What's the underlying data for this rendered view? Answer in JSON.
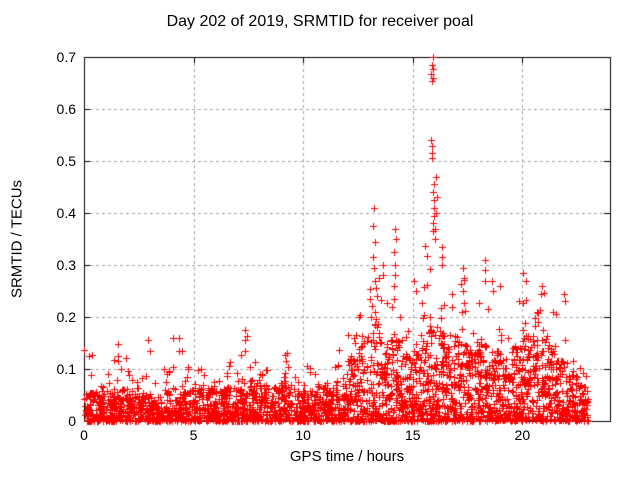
{
  "chart_data": {
    "type": "scatter",
    "title": "Day 202 of 2019, SRMTID for receiver poal",
    "xlabel": "GPS time / hours",
    "ylabel": "SRMTID / TECUs",
    "xlim": [
      0,
      24
    ],
    "ylim": [
      0,
      0.7
    ],
    "xticks": [
      0,
      5,
      10,
      15,
      20
    ],
    "yticks": [
      0,
      0.1,
      0.2,
      0.3,
      0.4,
      0.5,
      0.6,
      0.7
    ],
    "xtick_labels": [
      "0",
      "5",
      "10",
      "15",
      "20"
    ],
    "ytick_labels": [
      "0",
      "0.1",
      "0.2",
      "0.3",
      "0.4",
      "0.5",
      "0.6",
      "0.7"
    ],
    "legend": "none",
    "grid": {
      "on": true,
      "color": "#a6a6a6",
      "dash": [
        3,
        3
      ]
    },
    "marker": {
      "glyph": "plus",
      "color": "#ff0000",
      "size": 7
    },
    "background": "#ffffff",
    "data_time_range": [
      0,
      23.0
    ],
    "seed": 7,
    "tail_fraction": 0.08,
    "envelope_bins_format": [
      "t_start",
      "t_end",
      "n_points",
      "dense_band_max",
      "outlier_max",
      "n_zero_points"
    ],
    "envelope_bins": [
      [
        0.0,
        0.5,
        60,
        0.055,
        0.14,
        1
      ],
      [
        0.5,
        1.0,
        60,
        0.06,
        0.1,
        1
      ],
      [
        1.0,
        1.5,
        60,
        0.065,
        0.12,
        1
      ],
      [
        1.5,
        2.0,
        60,
        0.06,
        0.15,
        2
      ],
      [
        2.0,
        2.5,
        60,
        0.065,
        0.11,
        1
      ],
      [
        2.5,
        3.0,
        55,
        0.055,
        0.09,
        2
      ],
      [
        3.0,
        3.5,
        55,
        0.05,
        0.09,
        1
      ],
      [
        3.5,
        4.0,
        55,
        0.06,
        0.1,
        1
      ],
      [
        4.0,
        4.5,
        55,
        0.065,
        0.16,
        1
      ],
      [
        4.5,
        5.0,
        55,
        0.06,
        0.12,
        2
      ],
      [
        5.0,
        5.5,
        55,
        0.06,
        0.1,
        1
      ],
      [
        5.5,
        6.0,
        55,
        0.065,
        0.11,
        1
      ],
      [
        6.0,
        6.5,
        55,
        0.06,
        0.1,
        2
      ],
      [
        6.5,
        7.0,
        55,
        0.065,
        0.12,
        1
      ],
      [
        7.0,
        7.5,
        60,
        0.075,
        0.175,
        1
      ],
      [
        7.5,
        8.0,
        65,
        0.08,
        0.13,
        5
      ],
      [
        8.0,
        8.5,
        60,
        0.07,
        0.12,
        2
      ],
      [
        8.5,
        9.0,
        55,
        0.065,
        0.11,
        1
      ],
      [
        9.0,
        9.5,
        60,
        0.07,
        0.13,
        1
      ],
      [
        9.5,
        10.0,
        55,
        0.065,
        0.11,
        2
      ],
      [
        10.0,
        10.5,
        55,
        0.06,
        0.11,
        1
      ],
      [
        10.5,
        11.0,
        55,
        0.065,
        0.1,
        2
      ],
      [
        11.0,
        11.5,
        60,
        0.07,
        0.12,
        1
      ],
      [
        11.5,
        12.0,
        60,
        0.085,
        0.14,
        2
      ],
      [
        12.0,
        12.5,
        65,
        0.12,
        0.18,
        2
      ],
      [
        12.5,
        13.0,
        65,
        0.17,
        0.24,
        3
      ],
      [
        13.0,
        13.5,
        70,
        0.2,
        0.28,
        3
      ],
      [
        13.5,
        14.0,
        70,
        0.16,
        0.26,
        5
      ],
      [
        14.0,
        14.5,
        70,
        0.16,
        0.25,
        6
      ],
      [
        14.5,
        15.0,
        65,
        0.13,
        0.22,
        6
      ],
      [
        15.0,
        15.5,
        65,
        0.14,
        0.25,
        5
      ],
      [
        15.5,
        16.0,
        75,
        0.18,
        0.34,
        4
      ],
      [
        16.0,
        16.5,
        75,
        0.18,
        0.33,
        4
      ],
      [
        16.5,
        17.0,
        70,
        0.15,
        0.27,
        4
      ],
      [
        17.0,
        17.5,
        70,
        0.16,
        0.28,
        3
      ],
      [
        17.5,
        18.0,
        70,
        0.14,
        0.24,
        3
      ],
      [
        18.0,
        18.5,
        70,
        0.15,
        0.28,
        2
      ],
      [
        18.5,
        19.0,
        70,
        0.14,
        0.26,
        2
      ],
      [
        19.0,
        19.5,
        65,
        0.12,
        0.21,
        2
      ],
      [
        19.5,
        20.0,
        70,
        0.15,
        0.24,
        3
      ],
      [
        20.0,
        20.5,
        70,
        0.17,
        0.26,
        2
      ],
      [
        20.5,
        21.0,
        70,
        0.16,
        0.25,
        2
      ],
      [
        21.0,
        21.5,
        65,
        0.15,
        0.23,
        3
      ],
      [
        21.5,
        22.0,
        60,
        0.12,
        0.24,
        3
      ],
      [
        22.0,
        22.5,
        55,
        0.09,
        0.15,
        2
      ],
      [
        22.5,
        23.0,
        50,
        0.07,
        0.12,
        2
      ]
    ],
    "spike_clusters_format": [
      "t_hours",
      "values"
    ],
    "spike_clusters": [
      [
        15.9,
        [
          0.7,
          0.685,
          0.676,
          0.668,
          0.66,
          0.653,
          0.54,
          0.528,
          0.515,
          0.505
        ]
      ],
      [
        15.95,
        [
          0.455,
          0.44,
          0.425,
          0.41,
          0.395,
          0.38,
          0.365
        ]
      ],
      [
        16.05,
        [
          0.47,
          0.43,
          0.4,
          0.37,
          0.35
        ]
      ],
      [
        16.3,
        [
          0.335,
          0.315,
          0.3
        ]
      ],
      [
        13.25,
        [
          0.41,
          0.375,
          0.345,
          0.315,
          0.295
        ]
      ],
      [
        13.3,
        [
          0.27,
          0.255,
          0.24
        ]
      ],
      [
        14.2,
        [
          0.37,
          0.35,
          0.325,
          0.3,
          0.28,
          0.26
        ]
      ],
      [
        13.6,
        [
          0.3,
          0.28
        ]
      ],
      [
        15.1,
        [
          0.27,
          0.25
        ]
      ],
      [
        17.3,
        [
          0.295,
          0.275
        ]
      ],
      [
        18.35,
        [
          0.31,
          0.29,
          0.27
        ]
      ],
      [
        18.6,
        [
          0.27,
          0.25
        ]
      ],
      [
        20.1,
        [
          0.285,
          0.27
        ]
      ],
      [
        20.9,
        [
          0.26,
          0.245
        ]
      ],
      [
        21.9,
        [
          0.245,
          0.23
        ]
      ],
      [
        12.4,
        [
          0.165,
          0.15
        ]
      ],
      [
        7.3,
        [
          0.175,
          0.155,
          0.135
        ]
      ],
      [
        4.4,
        [
          0.16,
          0.135
        ]
      ],
      [
        3.0,
        [
          0.155,
          0.135
        ]
      ],
      [
        1.6,
        [
          0.148,
          0.125
        ]
      ],
      [
        9.2,
        [
          0.13,
          0.115
        ]
      ],
      [
        0.2,
        [
          0.125
        ]
      ]
    ]
  }
}
